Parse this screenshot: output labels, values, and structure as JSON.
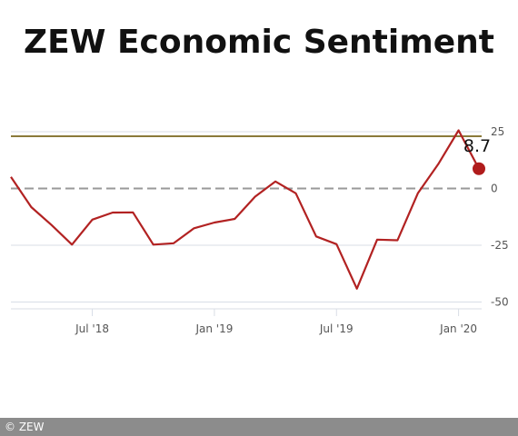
{
  "title": "ZEW Economic Sentiment",
  "copyright": "© ZEW",
  "colors": {
    "series": "#b22222",
    "reference": "#8b7a3a",
    "zero_line": "#999999",
    "grid": "#d8dde6",
    "endpoint": "#b01c1c"
  },
  "chart_data": {
    "type": "line",
    "title": "ZEW Economic Sentiment",
    "xlabel": "",
    "ylabel": "",
    "x": [
      "2018-03",
      "2018-04",
      "2018-05",
      "2018-06",
      "2018-07",
      "2018-08",
      "2018-09",
      "2018-10",
      "2018-11",
      "2018-12",
      "2019-01",
      "2019-02",
      "2019-03",
      "2019-04",
      "2019-05",
      "2019-06",
      "2019-07",
      "2019-08",
      "2019-09",
      "2019-10",
      "2019-11",
      "2019-12",
      "2020-01",
      "2020-02"
    ],
    "series": [
      {
        "values": [
          5.1,
          -8.2,
          -16.1,
          -24.7,
          -13.7,
          -10.6,
          -10.5,
          -24.7,
          -24.1,
          -17.5,
          -15.0,
          -13.4,
          -3.6,
          3.1,
          -2.1,
          -21.1,
          -24.5,
          -44.1,
          -22.5,
          -22.8,
          -2.1,
          10.7,
          25.6,
          8.7
        ]
      }
    ],
    "reference_line": 23,
    "zero_line": 0,
    "ylim": [
      -53,
      31
    ],
    "yticks": [
      25,
      0,
      -25,
      -50
    ],
    "ytick_labels": [
      "25",
      "0",
      "-25",
      "-50"
    ],
    "xticks": [
      "2018-07",
      "2019-01",
      "2019-07",
      "2020-01"
    ],
    "xtick_labels": [
      "Jul '18",
      "Jan '19",
      "Jul '19",
      "Jan '20"
    ],
    "last_value_label": "8.7",
    "grid": true
  }
}
